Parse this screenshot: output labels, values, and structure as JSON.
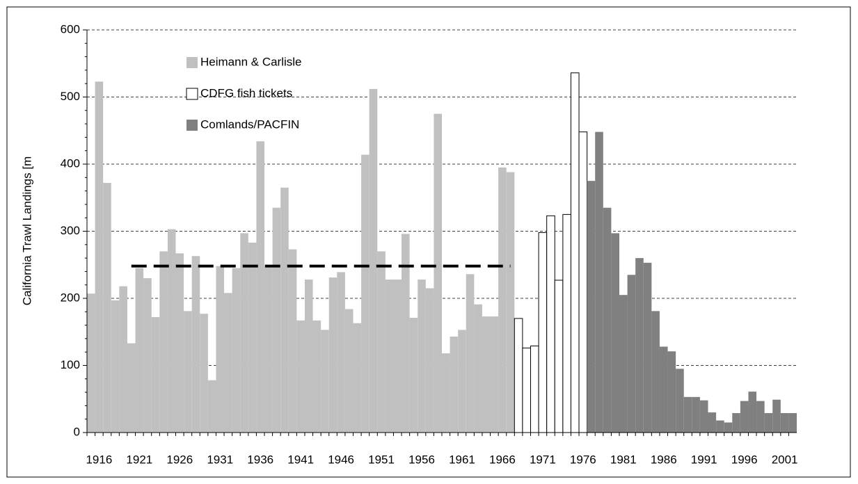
{
  "chart_data": {
    "type": "bar",
    "y_label": "California Trawl Landings [m",
    "x": [
      1915,
      1916,
      1917,
      1918,
      1919,
      1920,
      1921,
      1922,
      1923,
      1924,
      1925,
      1926,
      1927,
      1928,
      1929,
      1930,
      1931,
      1932,
      1933,
      1934,
      1935,
      1936,
      1937,
      1938,
      1939,
      1940,
      1941,
      1942,
      1943,
      1944,
      1945,
      1946,
      1947,
      1948,
      1949,
      1950,
      1951,
      1952,
      1953,
      1954,
      1955,
      1956,
      1957,
      1958,
      1959,
      1960,
      1961,
      1962,
      1963,
      1964,
      1965,
      1966,
      1967,
      1968,
      1969,
      1970,
      1971,
      1972,
      1973,
      1974,
      1975,
      1976,
      1977,
      1978,
      1979,
      1980,
      1981,
      1982,
      1983,
      1984,
      1985,
      1986,
      1987,
      1988,
      1989,
      1990,
      1991,
      1992,
      1993,
      1994,
      1995,
      1996,
      1997,
      1998,
      1999,
      2000,
      2001,
      2002
    ],
    "series": [
      {
        "name": "Heimann & Carlisle",
        "color": "#c0c0c0",
        "border": false,
        "values": [
          207,
          523,
          372,
          197,
          218,
          133,
          245,
          230,
          172,
          270,
          303,
          267,
          181,
          263,
          177,
          78,
          248,
          208,
          245,
          297,
          283,
          434,
          246,
          335,
          365,
          273,
          167,
          228,
          167,
          153,
          231,
          239,
          184,
          163,
          414,
          512,
          270,
          228,
          228,
          296,
          171,
          228,
          215,
          475,
          118,
          143,
          153,
          236,
          191,
          173,
          173,
          395,
          388,
          null,
          null,
          null,
          null,
          null,
          null,
          null,
          null,
          null,
          null,
          null,
          null,
          null,
          null,
          null,
          null,
          null,
          null,
          null,
          null,
          null,
          null,
          null,
          null,
          null,
          null,
          null,
          null,
          null,
          null,
          null,
          null,
          null,
          null,
          null
        ]
      },
      {
        "name": "CDFG fish tickets",
        "color": "#ffffff",
        "border": true,
        "values": [
          null,
          null,
          null,
          null,
          null,
          null,
          null,
          null,
          null,
          null,
          null,
          null,
          null,
          null,
          null,
          null,
          null,
          null,
          null,
          null,
          null,
          null,
          null,
          null,
          null,
          null,
          null,
          null,
          null,
          null,
          null,
          null,
          null,
          null,
          null,
          null,
          null,
          null,
          null,
          null,
          null,
          null,
          null,
          null,
          null,
          null,
          null,
          null,
          null,
          null,
          null,
          null,
          null,
          170,
          126,
          129,
          298,
          323,
          227,
          325,
          536,
          448,
          null,
          null,
          null,
          null,
          null,
          null,
          null,
          null,
          null,
          null,
          null,
          null,
          null,
          null,
          null,
          null,
          null,
          null,
          null,
          null,
          null,
          null,
          null,
          null,
          null,
          null
        ]
      },
      {
        "name": "Comlands/PACFIN",
        "color": "#808080",
        "border": false,
        "values": [
          null,
          null,
          null,
          null,
          null,
          null,
          null,
          null,
          null,
          null,
          null,
          null,
          null,
          null,
          null,
          null,
          null,
          null,
          null,
          null,
          null,
          null,
          null,
          null,
          null,
          null,
          null,
          null,
          null,
          null,
          null,
          null,
          null,
          null,
          null,
          null,
          null,
          null,
          null,
          null,
          null,
          null,
          null,
          null,
          null,
          null,
          null,
          null,
          null,
          null,
          null,
          null,
          null,
          null,
          null,
          null,
          null,
          null,
          null,
          null,
          null,
          null,
          375,
          448,
          335,
          297,
          205,
          235,
          260,
          253,
          181,
          128,
          121,
          95,
          53,
          53,
          48,
          30,
          18,
          15,
          29,
          47,
          61,
          47,
          29,
          49,
          29,
          29
        ]
      }
    ],
    "xlim": [
      1914.5,
      2002.5
    ],
    "xticks": [
      1916,
      1921,
      1926,
      1931,
      1936,
      1941,
      1946,
      1951,
      1956,
      1961,
      1966,
      1971,
      1976,
      1981,
      1986,
      1991,
      1996,
      2001
    ],
    "ylim": [
      0,
      600
    ],
    "yticks": [
      0,
      100,
      200,
      300,
      400,
      500,
      600
    ],
    "grid": true,
    "mean_line": {
      "value": 248,
      "start": 1920,
      "end": 1967,
      "color": "#000000"
    }
  }
}
